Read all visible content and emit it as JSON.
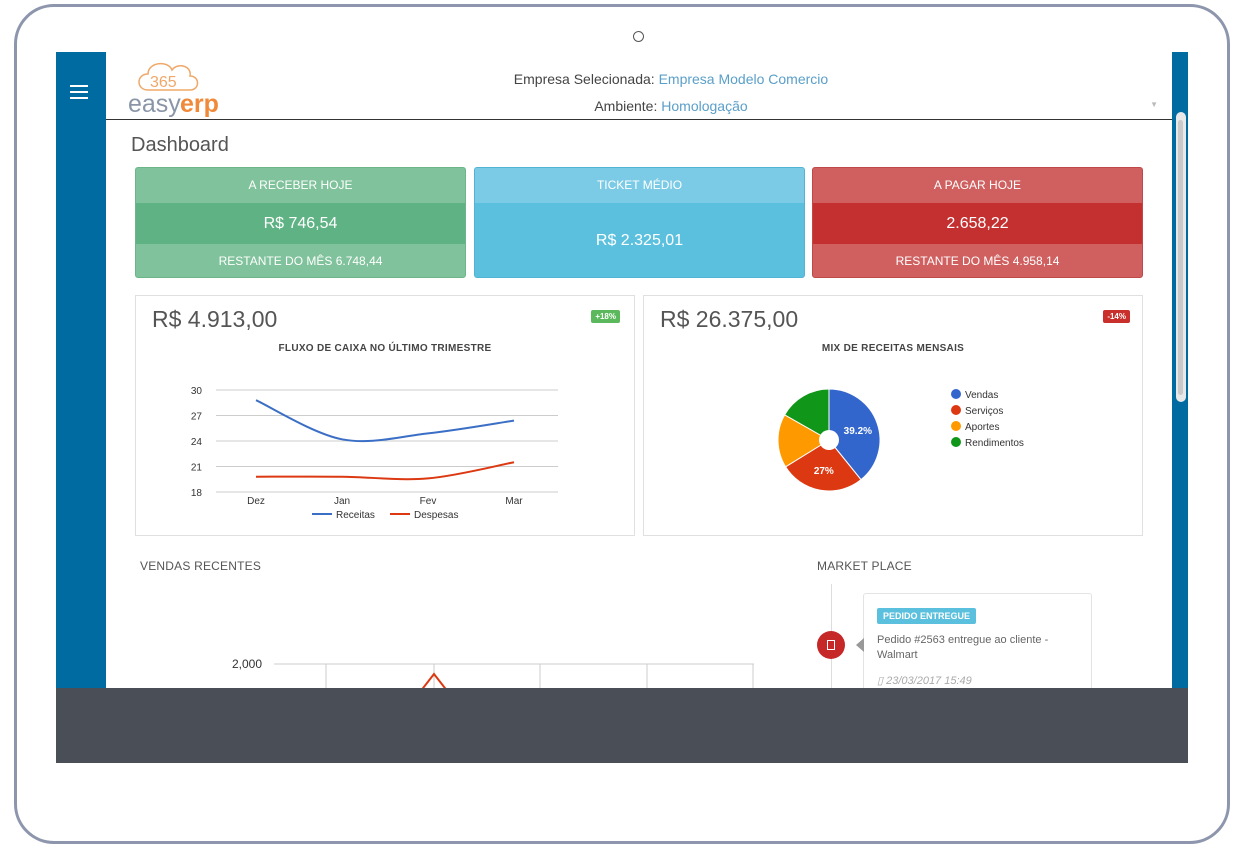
{
  "logo": {
    "number": "365",
    "word_a": "easy",
    "word_b": "erp"
  },
  "header": {
    "company_label": "Empresa Selecionada:",
    "company_value": "Empresa Modelo Comercio",
    "env_label": "Ambiente:",
    "env_value": "Homologação"
  },
  "page_title": "Dashboard",
  "tiles": {
    "receber": {
      "head": "A RECEBER HOJE",
      "value": "R$ 746,54",
      "foot": "RESTANTE DO MÊS 6.748,44"
    },
    "ticket": {
      "head": "TICKET MÉDIO",
      "value": "R$ 2.325,01"
    },
    "pagar": {
      "head": "A PAGAR HOJE",
      "value": "2.658,22",
      "foot": "RESTANTE DO MÊS 4.958,14"
    }
  },
  "panels": {
    "fluxo": {
      "big": "R$ 4.913,00",
      "badge": "+18%",
      "title": "FLUXO DE CAIXA NO ÚLTIMO TRIMESTRE"
    },
    "mix": {
      "big": "R$ 26.375,00",
      "badge": "-14%",
      "title": "MIX DE RECEITAS MENSAIS"
    }
  },
  "sections": {
    "vendas": "VENDAS RECENTES",
    "market": "MARKET PLACE"
  },
  "market_card": {
    "badge": "PEDIDO ENTREGUE",
    "text": "Pedido #2563 entregue ao cliente - Walmart",
    "time": "23/03/2017 15:49"
  },
  "colors": {
    "sidebar": "#006ba1",
    "green": "#5fb283",
    "blue": "#5bc0de",
    "red": "#c43030",
    "receitas": "#3b6fc6",
    "despesas": "#dc3912"
  },
  "icons": [
    "hamburger-menu-icon",
    "clipboard-icon",
    "calendar-icon"
  ],
  "chart_data": [
    {
      "type": "line",
      "categories": [
        "Dez",
        "Jan",
        "Fev",
        "Mar"
      ],
      "y_ticks": [
        18,
        21,
        24,
        27,
        30
      ],
      "ylim": [
        18,
        30
      ],
      "grid": true,
      "legend": "bottom",
      "series": [
        {
          "name": "Receitas",
          "color": "#3b6fc6",
          "values": [
            28.8,
            24.2,
            24.9,
            26.4
          ]
        },
        {
          "name": "Despesas",
          "color": "#dc3912",
          "values": [
            19.8,
            19.8,
            19.6,
            21.5
          ]
        }
      ]
    },
    {
      "type": "pie",
      "donut": true,
      "legend": "right",
      "labels": [
        "Vendas",
        "Serviços",
        "Aportes",
        "Rendimentos"
      ],
      "colors": [
        "#3366cc",
        "#dc3912",
        "#ff9900",
        "#109618"
      ],
      "values": [
        39.2,
        27,
        17,
        16.8
      ],
      "slice_labels": [
        "39.2%",
        "27%",
        "",
        ""
      ]
    },
    {
      "type": "line",
      "y_ticks": [
        "2,000"
      ],
      "grid": true
    }
  ]
}
